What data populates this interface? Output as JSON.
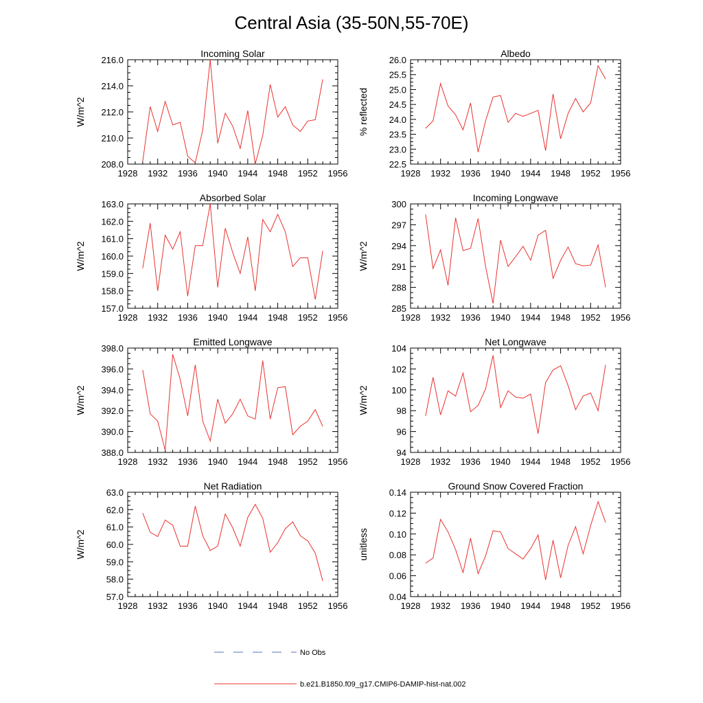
{
  "figure": {
    "title": "Central Asia (35-50N,55-70E)",
    "legend": [
      {
        "label": "No Obs",
        "color": "#5a6fbf",
        "style": "dashed"
      },
      {
        "label": "b.e21.B1850.f09_g17.CMIP6-DAMIP-hist-nat.002",
        "color": "#e8312e",
        "style": "solid"
      }
    ]
  },
  "chart_data": [
    {
      "type": "line",
      "title": "Incoming Solar",
      "ylabel": "W/m^2",
      "xlim": [
        1928,
        1956
      ],
      "ylim": [
        208,
        216
      ],
      "xticks": [
        "1928",
        "1932",
        "1936",
        "1940",
        "1944",
        "1948",
        "1952",
        "1956"
      ],
      "yticks": [
        "208.0",
        "210.0",
        "212.0",
        "214.0",
        "216.0"
      ],
      "x": [
        1930,
        1931,
        1932,
        1933,
        1934,
        1935,
        1936,
        1937,
        1938,
        1939,
        1940,
        1941,
        1942,
        1943,
        1944,
        1945,
        1946,
        1947,
        1948,
        1949,
        1950,
        1951,
        1952,
        1953,
        1954
      ],
      "series": [
        {
          "color": "#e8312e",
          "values": [
            208.2,
            212.4,
            210.5,
            212.8,
            211.0,
            211.2,
            208.6,
            208.1,
            210.6,
            216.0,
            209.6,
            211.9,
            210.9,
            209.2,
            212.1,
            208.0,
            210.2,
            214.1,
            211.6,
            212.4,
            211.0,
            210.5,
            211.3,
            211.4,
            214.5
          ]
        }
      ]
    },
    {
      "type": "line",
      "title": "Albedo",
      "ylabel": "% reflected",
      "xlim": [
        1928,
        1956
      ],
      "ylim": [
        22.5,
        26.0
      ],
      "xticks": [
        "1928",
        "1932",
        "1936",
        "1940",
        "1944",
        "1948",
        "1952",
        "1956"
      ],
      "yticks": [
        "22.5",
        "23.0",
        "23.5",
        "24.0",
        "24.5",
        "25.0",
        "25.5",
        "26.0"
      ],
      "x": [
        1930,
        1931,
        1932,
        1933,
        1934,
        1935,
        1936,
        1937,
        1938,
        1939,
        1940,
        1941,
        1942,
        1943,
        1944,
        1945,
        1946,
        1947,
        1948,
        1949,
        1950,
        1951,
        1952,
        1953,
        1954
      ],
      "series": [
        {
          "color": "#e8312e",
          "values": [
            23.7,
            23.95,
            25.2,
            24.45,
            24.15,
            23.65,
            24.55,
            22.9,
            23.95,
            24.75,
            24.8,
            23.9,
            24.2,
            24.1,
            24.2,
            24.3,
            22.95,
            24.85,
            23.35,
            24.2,
            24.7,
            24.25,
            24.55,
            25.8,
            25.35
          ]
        }
      ]
    },
    {
      "type": "line",
      "title": "Absorbed Solar",
      "ylabel": "W/m^2",
      "xlim": [
        1928,
        1956
      ],
      "ylim": [
        157,
        163
      ],
      "xticks": [
        "1928",
        "1932",
        "1936",
        "1940",
        "1944",
        "1948",
        "1952",
        "1956"
      ],
      "yticks": [
        "157.0",
        "158.0",
        "159.0",
        "160.0",
        "161.0",
        "162.0",
        "163.0"
      ],
      "x": [
        1930,
        1931,
        1932,
        1933,
        1934,
        1935,
        1936,
        1937,
        1938,
        1939,
        1940,
        1941,
        1942,
        1943,
        1944,
        1945,
        1946,
        1947,
        1948,
        1949,
        1950,
        1951,
        1952,
        1953,
        1954
      ],
      "series": [
        {
          "color": "#e8312e",
          "values": [
            159.3,
            161.9,
            158.0,
            161.2,
            160.4,
            161.4,
            157.7,
            160.6,
            160.6,
            163.0,
            158.2,
            161.6,
            160.2,
            159.0,
            161.1,
            158.0,
            162.1,
            161.4,
            162.4,
            161.4,
            159.4,
            159.9,
            159.9,
            157.5,
            160.3
          ]
        }
      ]
    },
    {
      "type": "line",
      "title": "Incoming Longwave",
      "ylabel": "W/m^2",
      "xlim": [
        1928,
        1956
      ],
      "ylim": [
        285,
        300
      ],
      "xticks": [
        "1928",
        "1932",
        "1936",
        "1940",
        "1944",
        "1948",
        "1952",
        "1956"
      ],
      "yticks": [
        "285",
        "288",
        "291",
        "294",
        "297",
        "300"
      ],
      "x": [
        1930,
        1931,
        1932,
        1933,
        1934,
        1935,
        1936,
        1937,
        1938,
        1939,
        1940,
        1941,
        1942,
        1943,
        1944,
        1945,
        1946,
        1947,
        1948,
        1949,
        1950,
        1951,
        1952,
        1953,
        1954
      ],
      "series": [
        {
          "color": "#e8312e",
          "values": [
            298.5,
            290.7,
            293.4,
            288.3,
            298.0,
            293.3,
            293.6,
            297.9,
            291.0,
            285.7,
            294.8,
            291.0,
            292.4,
            293.9,
            291.9,
            295.5,
            296.2,
            289.3,
            291.9,
            293.8,
            291.4,
            291.1,
            291.2,
            294.1,
            288.0
          ]
        }
      ]
    },
    {
      "type": "line",
      "title": "Emitted Longwave",
      "ylabel": "W/m^2",
      "xlim": [
        1928,
        1956
      ],
      "ylim": [
        388,
        398
      ],
      "xticks": [
        "1928",
        "1932",
        "1936",
        "1940",
        "1944",
        "1948",
        "1952",
        "1956"
      ],
      "yticks": [
        "388.0",
        "390.0",
        "392.0",
        "394.0",
        "396.0",
        "398.0"
      ],
      "x": [
        1930,
        1931,
        1932,
        1933,
        1934,
        1935,
        1936,
        1937,
        1938,
        1939,
        1940,
        1941,
        1942,
        1943,
        1944,
        1945,
        1946,
        1947,
        1948,
        1949,
        1950,
        1951,
        1952,
        1953,
        1954
      ],
      "series": [
        {
          "color": "#e8312e",
          "values": [
            395.9,
            391.7,
            391.0,
            388.2,
            397.4,
            395.0,
            391.5,
            396.4,
            391.0,
            389.1,
            393.1,
            390.8,
            391.7,
            393.1,
            391.5,
            391.2,
            396.8,
            391.2,
            394.2,
            394.3,
            389.7,
            390.5,
            391.0,
            392.1,
            390.5
          ]
        }
      ]
    },
    {
      "type": "line",
      "title": "Net Longwave",
      "ylabel": "W/m^2",
      "xlim": [
        1928,
        1956
      ],
      "ylim": [
        94,
        104
      ],
      "xticks": [
        "1928",
        "1932",
        "1936",
        "1940",
        "1944",
        "1948",
        "1952",
        "1956"
      ],
      "yticks": [
        "94",
        "96",
        "98",
        "100",
        "102",
        "104"
      ],
      "x": [
        1930,
        1931,
        1932,
        1933,
        1934,
        1935,
        1936,
        1937,
        1938,
        1939,
        1940,
        1941,
        1942,
        1943,
        1944,
        1945,
        1946,
        1947,
        1948,
        1949,
        1950,
        1951,
        1952,
        1953,
        1954
      ],
      "series": [
        {
          "color": "#e8312e",
          "values": [
            97.5,
            101.2,
            97.6,
            99.9,
            99.4,
            101.6,
            97.9,
            98.5,
            100.1,
            103.3,
            98.3,
            99.9,
            99.3,
            99.2,
            99.6,
            95.8,
            100.7,
            101.9,
            102.3,
            100.4,
            98.1,
            99.4,
            99.7,
            98.0,
            102.4
          ]
        }
      ]
    },
    {
      "type": "line",
      "title": "Net Radiation",
      "ylabel": "W/m^2",
      "xlim": [
        1928,
        1956
      ],
      "ylim": [
        57,
        63
      ],
      "xticks": [
        "1928",
        "1932",
        "1936",
        "1940",
        "1944",
        "1948",
        "1952",
        "1956"
      ],
      "yticks": [
        "57.0",
        "58.0",
        "59.0",
        "60.0",
        "61.0",
        "62.0",
        "63.0"
      ],
      "x": [
        1930,
        1931,
        1932,
        1933,
        1934,
        1935,
        1936,
        1937,
        1938,
        1939,
        1940,
        1941,
        1942,
        1943,
        1944,
        1945,
        1946,
        1947,
        1948,
        1949,
        1950,
        1951,
        1952,
        1953,
        1954
      ],
      "series": [
        {
          "color": "#e8312e",
          "values": [
            61.8,
            60.7,
            60.45,
            61.4,
            61.1,
            59.9,
            59.9,
            62.2,
            60.5,
            59.65,
            59.9,
            61.75,
            60.95,
            59.9,
            61.55,
            62.3,
            61.5,
            59.55,
            60.1,
            60.9,
            61.3,
            60.5,
            60.2,
            59.5,
            57.9
          ]
        }
      ]
    },
    {
      "type": "line",
      "title": "Ground Snow Covered Fraction",
      "ylabel": "unitless",
      "xlim": [
        1928,
        1956
      ],
      "ylim": [
        0.04,
        0.14
      ],
      "xticks": [
        "1928",
        "1932",
        "1936",
        "1940",
        "1944",
        "1948",
        "1952",
        "1956"
      ],
      "yticks": [
        "0.04",
        "0.06",
        "0.08",
        "0.10",
        "0.12",
        "0.14"
      ],
      "x": [
        1930,
        1931,
        1932,
        1933,
        1934,
        1935,
        1936,
        1937,
        1938,
        1939,
        1940,
        1941,
        1942,
        1943,
        1944,
        1945,
        1946,
        1947,
        1948,
        1949,
        1950,
        1951,
        1952,
        1953,
        1954
      ],
      "series": [
        {
          "color": "#e8312e",
          "values": [
            0.072,
            0.077,
            0.114,
            0.102,
            0.085,
            0.063,
            0.096,
            0.062,
            0.079,
            0.103,
            0.102,
            0.086,
            0.081,
            0.076,
            0.086,
            0.099,
            0.056,
            0.094,
            0.058,
            0.089,
            0.107,
            0.081,
            0.108,
            0.131,
            0.111
          ]
        }
      ]
    }
  ]
}
